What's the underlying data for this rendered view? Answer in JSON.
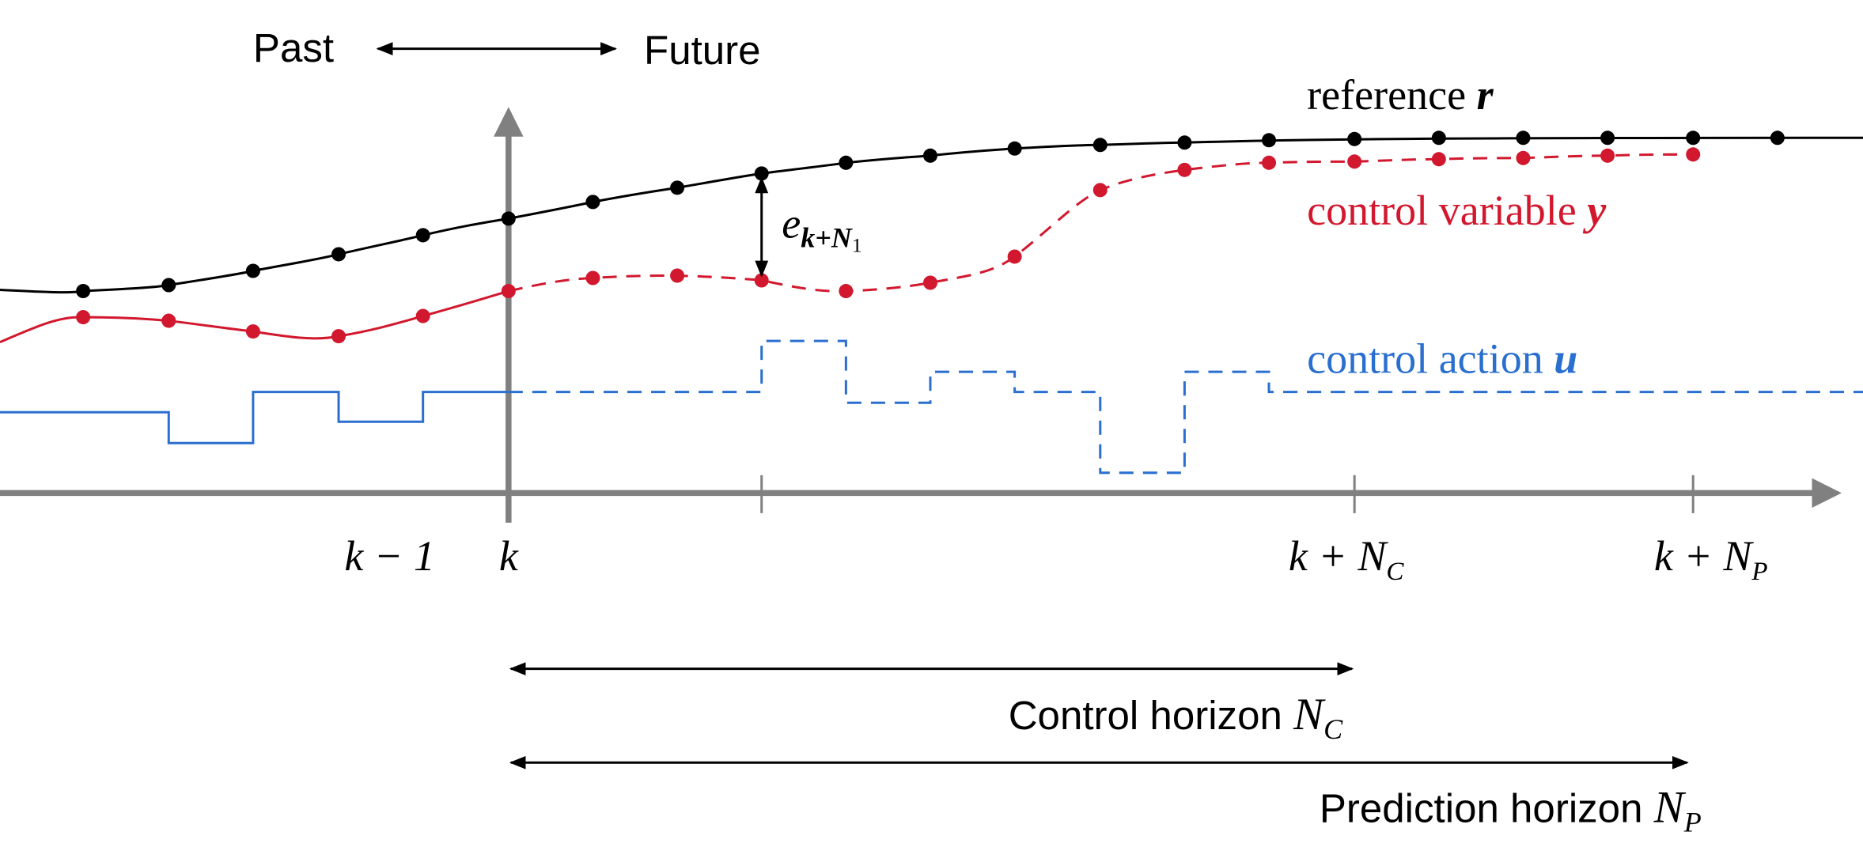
{
  "time_labels": {
    "past": "Past",
    "future": "Future"
  },
  "signals": {
    "reference": {
      "text": "reference",
      "symbol": "r"
    },
    "output": {
      "text": "control variable",
      "symbol": "y"
    },
    "input": {
      "text": "control action",
      "symbol": "u"
    },
    "error": {
      "symbol": "e",
      "subscript": "k+N",
      "subsub": "1"
    }
  },
  "ticks": [
    {
      "text": "k − 1"
    },
    {
      "text": "k"
    },
    {
      "text": "k + N",
      "sub": "C"
    },
    {
      "text": "k + N",
      "sub": "P"
    }
  ],
  "horizons": {
    "control": {
      "text": "Control horizon ",
      "symbol": "N",
      "sub": "C"
    },
    "prediction": {
      "text": "Prediction horizon ",
      "symbol": "N",
      "sub": "P"
    }
  }
}
